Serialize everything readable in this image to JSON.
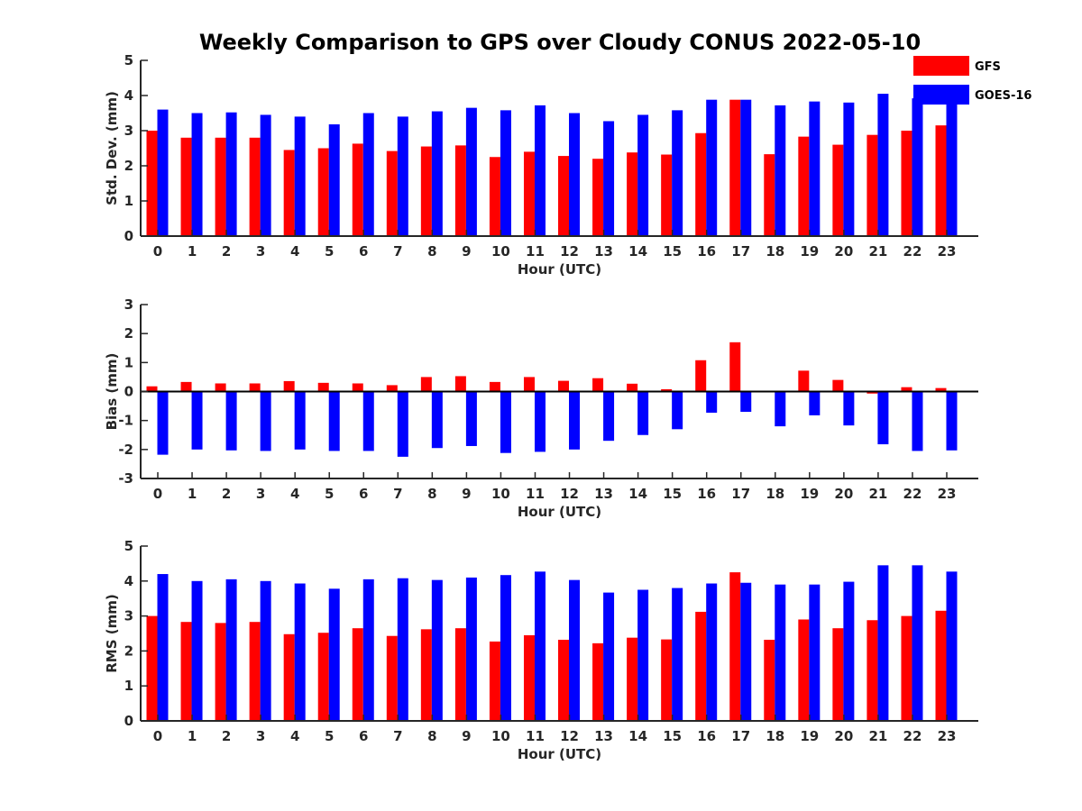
{
  "title": "Weekly Comparison to GPS over Cloudy CONUS 2022-05-10",
  "colors": {
    "GFS": "#ff0000",
    "GOES-16": "#0000ff",
    "axis": "#262626"
  },
  "legend": {
    "position": "top-right",
    "entries": [
      "GFS",
      "GOES-16"
    ]
  },
  "chart_data": [
    {
      "type": "bar",
      "name": "std_dev",
      "xlabel": "Hour (UTC)",
      "ylabel": "Std. Dev. (mm)",
      "ylim": [
        0,
        5
      ],
      "yticks": [
        0,
        1,
        2,
        3,
        4,
        5
      ],
      "categories": [
        "0",
        "1",
        "2",
        "3",
        "4",
        "5",
        "6",
        "7",
        "8",
        "9",
        "10",
        "11",
        "12",
        "13",
        "14",
        "15",
        "16",
        "17",
        "18",
        "19",
        "20",
        "21",
        "22",
        "23"
      ],
      "series": [
        {
          "name": "GFS",
          "values": [
            3.0,
            2.8,
            2.8,
            2.8,
            2.45,
            2.5,
            2.63,
            2.42,
            2.55,
            2.58,
            2.25,
            2.4,
            2.28,
            2.2,
            2.38,
            2.32,
            2.93,
            3.88,
            2.33,
            2.83,
            2.6,
            2.88,
            3.0,
            3.15
          ]
        },
        {
          "name": "GOES-16",
          "values": [
            3.6,
            3.5,
            3.52,
            3.45,
            3.4,
            3.18,
            3.5,
            3.4,
            3.55,
            3.65,
            3.58,
            3.72,
            3.5,
            3.27,
            3.45,
            3.58,
            3.88,
            3.88,
            3.72,
            3.83,
            3.8,
            4.05,
            3.92,
            3.88
          ]
        }
      ],
      "grid": false
    },
    {
      "type": "bar",
      "name": "bias",
      "xlabel": "Hour (UTC)",
      "ylabel": "Bias (mm)",
      "ylim": [
        -3,
        3
      ],
      "yticks": [
        -3,
        -2,
        -1,
        0,
        1,
        2,
        3
      ],
      "categories": [
        "0",
        "1",
        "2",
        "3",
        "4",
        "5",
        "6",
        "7",
        "8",
        "9",
        "10",
        "11",
        "12",
        "13",
        "14",
        "15",
        "16",
        "17",
        "18",
        "19",
        "20",
        "21",
        "22",
        "23"
      ],
      "series": [
        {
          "name": "GFS",
          "values": [
            0.18,
            0.33,
            0.28,
            0.28,
            0.36,
            0.3,
            0.28,
            0.22,
            0.5,
            0.53,
            0.33,
            0.5,
            0.37,
            0.46,
            0.27,
            0.08,
            1.08,
            1.7,
            0.0,
            0.72,
            0.4,
            -0.07,
            0.15,
            0.12
          ]
        },
        {
          "name": "GOES-16",
          "values": [
            -2.18,
            -2.0,
            -2.03,
            -2.05,
            -2.0,
            -2.05,
            -2.05,
            -2.25,
            -1.95,
            -1.88,
            -2.12,
            -2.08,
            -2.0,
            -1.7,
            -1.5,
            -1.3,
            -0.73,
            -0.7,
            -1.2,
            -0.82,
            -1.17,
            -1.82,
            -2.05,
            -2.03
          ]
        }
      ],
      "grid": false
    },
    {
      "type": "bar",
      "name": "rms",
      "xlabel": "Hour (UTC)",
      "ylabel": "RMS (mm)",
      "ylim": [
        0,
        5
      ],
      "yticks": [
        0,
        1,
        2,
        3,
        4,
        5
      ],
      "categories": [
        "0",
        "1",
        "2",
        "3",
        "4",
        "5",
        "6",
        "7",
        "8",
        "9",
        "10",
        "11",
        "12",
        "13",
        "14",
        "15",
        "16",
        "17",
        "18",
        "19",
        "20",
        "21",
        "22",
        "23"
      ],
      "series": [
        {
          "name": "GFS",
          "values": [
            3.0,
            2.83,
            2.8,
            2.83,
            2.48,
            2.52,
            2.65,
            2.43,
            2.62,
            2.65,
            2.27,
            2.45,
            2.32,
            2.22,
            2.38,
            2.33,
            3.12,
            4.25,
            2.32,
            2.9,
            2.65,
            2.88,
            3.0,
            3.15
          ]
        },
        {
          "name": "GOES-16",
          "values": [
            4.2,
            4.0,
            4.05,
            4.0,
            3.93,
            3.78,
            4.05,
            4.08,
            4.03,
            4.1,
            4.17,
            4.27,
            4.03,
            3.67,
            3.75,
            3.8,
            3.93,
            3.95,
            3.9,
            3.9,
            3.98,
            4.45,
            4.45,
            4.27
          ]
        }
      ],
      "grid": false
    }
  ]
}
